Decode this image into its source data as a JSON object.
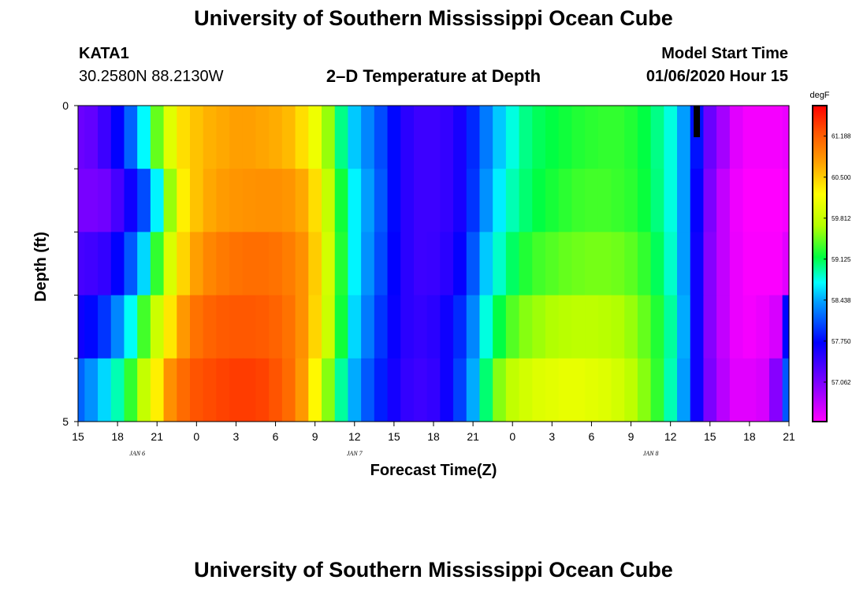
{
  "header": {
    "title": "University of Southern Mississippi Ocean Cube",
    "station": "KATA1",
    "coords": "30.2580N 88.2130W",
    "plot_title": "2–D Temperature at Depth",
    "model_start_label": "Model Start Time",
    "model_start_value": "01/06/2020 Hour 15"
  },
  "footer": {
    "title": "University of Southern Mississippi Ocean Cube"
  },
  "chart_data": {
    "type": "heatmap",
    "title": "2–D Temperature at Depth",
    "xlabel": "Forecast Time(Z)",
    "ylabel": "Depth (ft)",
    "x_tick_labels": [
      "15",
      "18",
      "21",
      "0",
      "3",
      "6",
      "9",
      "12",
      "15",
      "18",
      "21",
      "0",
      "3",
      "6",
      "9",
      "12",
      "15",
      "18",
      "21"
    ],
    "date_labels": [
      "JAN 6",
      "JAN 7",
      "JAN 8"
    ],
    "y_tick_labels": [
      "0",
      "5"
    ],
    "xlim_hours_since_start": [
      0,
      54
    ],
    "ylim_ft": [
      0,
      5
    ],
    "colorbar": {
      "unit": "degF",
      "tick_labels": [
        "61.188",
        "60.500",
        "59.812",
        "59.125",
        "58.438",
        "57.750",
        "57.062"
      ],
      "range": [
        56.4,
        61.7
      ]
    },
    "hours_since_start": [
      0,
      1,
      2,
      3,
      4,
      5,
      6,
      7,
      8,
      9,
      10,
      11,
      12,
      13,
      14,
      15,
      16,
      17,
      18,
      19,
      20,
      21,
      22,
      23,
      24,
      25,
      26,
      27,
      28,
      29,
      30,
      31,
      32,
      33,
      34,
      35,
      36,
      37,
      38,
      39,
      40,
      41,
      42,
      43,
      44,
      45,
      46,
      47,
      48,
      49,
      50,
      51,
      52,
      53,
      54
    ],
    "depth_ft": [
      0.5,
      1.5,
      2.5,
      3.5,
      4.5
    ],
    "temperature_degF": [
      [
        57.15,
        57.2,
        57.4,
        57.72,
        58.15,
        58.72,
        59.45,
        60.0,
        60.4,
        60.55,
        60.65,
        60.7,
        60.75,
        60.75,
        60.72,
        60.68,
        60.6,
        60.4,
        60.1,
        59.6,
        59.0,
        58.55,
        58.3,
        58.05,
        57.75,
        57.5,
        57.4,
        57.4,
        57.45,
        57.6,
        57.9,
        58.25,
        58.55,
        58.8,
        59.0,
        59.1,
        59.15,
        59.2,
        59.25,
        59.28,
        59.3,
        59.3,
        59.25,
        59.15,
        59.0,
        58.8,
        58.4,
        57.8,
        57.15,
        56.85,
        56.55,
        56.45,
        56.45,
        56.45,
        56.5
      ],
      [
        57.08,
        57.08,
        57.12,
        57.35,
        57.65,
        58.05,
        58.7,
        59.6,
        60.3,
        60.55,
        60.7,
        60.78,
        60.82,
        60.84,
        60.85,
        60.85,
        60.82,
        60.7,
        60.4,
        59.8,
        59.2,
        58.7,
        58.4,
        58.1,
        57.75,
        57.5,
        57.4,
        57.4,
        57.45,
        57.6,
        57.95,
        58.35,
        58.68,
        58.9,
        59.05,
        59.15,
        59.22,
        59.28,
        59.33,
        59.35,
        59.35,
        59.32,
        59.28,
        59.18,
        59.02,
        58.8,
        58.4,
        57.7,
        57.05,
        56.7,
        56.48,
        56.4,
        56.4,
        56.4,
        56.45
      ],
      [
        57.35,
        57.38,
        57.45,
        57.72,
        58.1,
        58.6,
        59.3,
        59.95,
        60.45,
        60.75,
        60.92,
        61.0,
        61.05,
        61.08,
        61.08,
        61.05,
        60.98,
        60.85,
        60.5,
        59.9,
        59.25,
        58.7,
        58.35,
        58.05,
        57.72,
        57.5,
        57.4,
        57.42,
        57.5,
        57.7,
        58.1,
        58.55,
        58.85,
        59.08,
        59.25,
        59.35,
        59.4,
        59.45,
        59.48,
        59.5,
        59.5,
        59.48,
        59.42,
        59.3,
        59.1,
        58.85,
        58.4,
        57.65,
        57.0,
        56.7,
        56.5,
        56.42,
        56.42,
        56.42,
        56.55
      ],
      [
        57.65,
        57.75,
        57.95,
        58.3,
        58.75,
        59.35,
        59.85,
        60.35,
        60.8,
        61.05,
        61.15,
        61.2,
        61.22,
        61.22,
        61.2,
        61.15,
        61.05,
        60.85,
        60.45,
        59.85,
        59.2,
        58.6,
        58.25,
        57.95,
        57.68,
        57.5,
        57.45,
        57.5,
        57.65,
        57.9,
        58.3,
        58.8,
        59.15,
        59.4,
        59.55,
        59.62,
        59.68,
        59.72,
        59.75,
        59.75,
        59.72,
        59.68,
        59.6,
        59.45,
        59.25,
        58.95,
        58.45,
        57.65,
        57.0,
        56.7,
        56.5,
        56.45,
        56.5,
        56.6,
        57.75
      ],
      [
        58.15,
        58.35,
        58.6,
        58.9,
        59.3,
        59.8,
        60.3,
        60.85,
        61.1,
        61.25,
        61.3,
        61.35,
        61.38,
        61.38,
        61.35,
        61.25,
        61.1,
        60.8,
        60.25,
        59.55,
        58.95,
        58.45,
        58.1,
        57.85,
        57.62,
        57.45,
        57.4,
        57.45,
        57.65,
        58.0,
        58.45,
        59.05,
        59.55,
        59.78,
        59.9,
        59.98,
        60.02,
        60.05,
        60.05,
        60.02,
        59.98,
        59.9,
        59.75,
        59.55,
        59.3,
        58.9,
        58.4,
        57.65,
        57.05,
        56.75,
        56.55,
        56.55,
        56.6,
        57.0,
        58.1
      ]
    ],
    "marker": {
      "hour": 47,
      "depth_range_ft": [
        0,
        0.5
      ]
    }
  }
}
